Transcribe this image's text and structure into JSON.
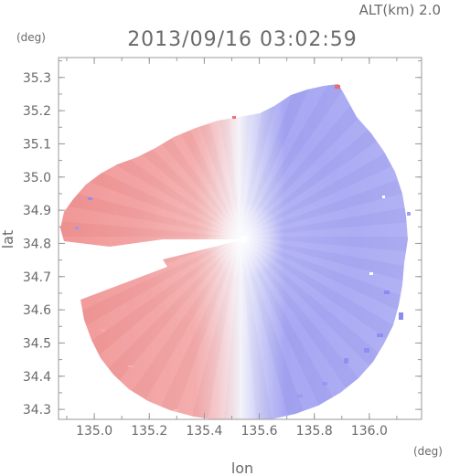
{
  "header": {
    "altitude_label": "ALT(km) 2.0",
    "timestamp": "2013/09/16 03:02:59",
    "y_unit": "(deg)",
    "x_unit": "(deg)"
  },
  "chart_data": {
    "type": "heatmap",
    "title": "2013/09/16 03:02:59",
    "subtitle": "ALT(km) 2.0",
    "xlabel": "lon",
    "ylabel": "lat",
    "x_unit": "(deg)",
    "y_unit": "(deg)",
    "xlim": [
      134.87,
      136.19
    ],
    "ylim": [
      34.27,
      35.36
    ],
    "x_ticks": [
      135.0,
      135.2,
      135.4,
      135.6,
      135.8,
      136.0
    ],
    "x_tick_labels": [
      "135.0",
      "135.2",
      "135.4",
      "135.6",
      "135.8",
      "136.0"
    ],
    "y_ticks": [
      34.3,
      34.4,
      34.5,
      34.6,
      34.7,
      34.8,
      34.9,
      35.0,
      35.1,
      35.2,
      35.3
    ],
    "y_tick_labels": [
      "34.3",
      "34.4",
      "34.5",
      "34.6",
      "34.7",
      "34.8",
      "34.9",
      "35.0",
      "35.1",
      "35.2",
      "35.3"
    ],
    "grid": false,
    "radar_center": {
      "lon": 135.53,
      "lat": 34.82
    },
    "colors": {
      "toward": "#8c8cf0",
      "away": "#f08c8c",
      "zero": "#f4f4fb",
      "frame": "#9a9a9a"
    }
  }
}
